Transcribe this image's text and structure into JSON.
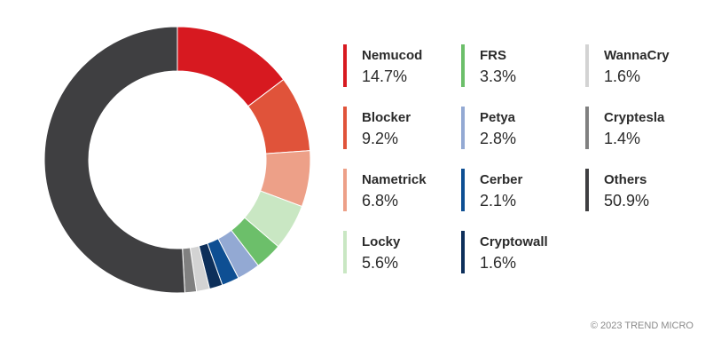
{
  "chart_data": {
    "type": "donut",
    "categories": [
      "Nemucod",
      "Blocker",
      "Nametrick",
      "Locky",
      "FRS",
      "Petya",
      "Cerber",
      "Cryptowall",
      "WannaCry",
      "Cryptesla",
      "Others"
    ],
    "values": [
      14.7,
      9.2,
      6.8,
      5.6,
      3.3,
      2.8,
      2.1,
      1.6,
      1.6,
      1.4,
      50.9
    ],
    "value_labels": [
      "14.7%",
      "9.2%",
      "6.8%",
      "5.6%",
      "3.3%",
      "2.8%",
      "2.1%",
      "1.6%",
      "1.6%",
      "1.4%",
      "50.9%"
    ],
    "colors": [
      "#d71920",
      "#e0533a",
      "#eda088",
      "#c9e7c3",
      "#6cbf6a",
      "#93a9d3",
      "#0e4f93",
      "#0d2f5a",
      "#d3d3d3",
      "#808080",
      "#3f3f41"
    ]
  },
  "footer": "© 2023 TREND MICRO"
}
